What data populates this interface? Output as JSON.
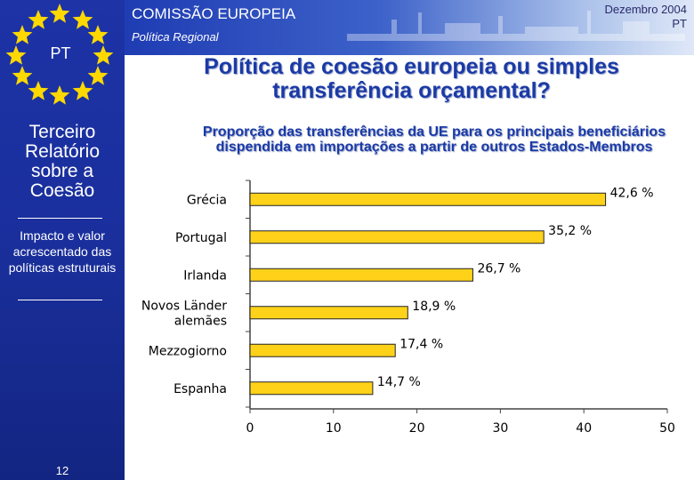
{
  "header": {
    "org_name": "COMISSÃO EUROPEIA",
    "org_sub": "Política Regional",
    "date_line1": "Dezembro 2004",
    "date_line2": "PT"
  },
  "sidebar": {
    "country_code": "PT",
    "report_title": "Terceiro Relatório sobre a Coesão",
    "section": "Impacto e valor acrescentado das políticas estruturais",
    "page_number": "12"
  },
  "main_title": "Política de coesão europeia ou simples transferência orçamental?",
  "colors": {
    "bar_fill": "#ffd21a",
    "bar_stroke": "#222222",
    "title": "#1b3aa6"
  },
  "chart_data": {
    "type": "bar",
    "orientation": "horizontal",
    "title": "Proporção das transferências da UE para os principais beneficiários dispendida em importações a partir de outros Estados-Membros",
    "categories": [
      "Grécia",
      "Portugal",
      "Irlanda",
      "Novos Länder alemães",
      "Mezzogiorno",
      "Espanha"
    ],
    "category_lines": [
      [
        "Grécia"
      ],
      [
        "Portugal"
      ],
      [
        "Irlanda"
      ],
      [
        "Novos Länder",
        "alemães"
      ],
      [
        "Mezzogiorno"
      ],
      [
        "Espanha"
      ]
    ],
    "values": [
      42.6,
      35.2,
      26.7,
      18.9,
      17.4,
      14.7
    ],
    "value_labels": [
      "42,6 %",
      "35,2 %",
      "26,7 %",
      "18,9 %",
      "17,4 %",
      "14,7 %"
    ],
    "xlim": [
      0,
      50
    ],
    "ticks": [
      0,
      10,
      20,
      30,
      40,
      50
    ],
    "tick_labels": [
      "0",
      "10",
      "20",
      "30",
      "40",
      "50"
    ],
    "unit": "%"
  }
}
